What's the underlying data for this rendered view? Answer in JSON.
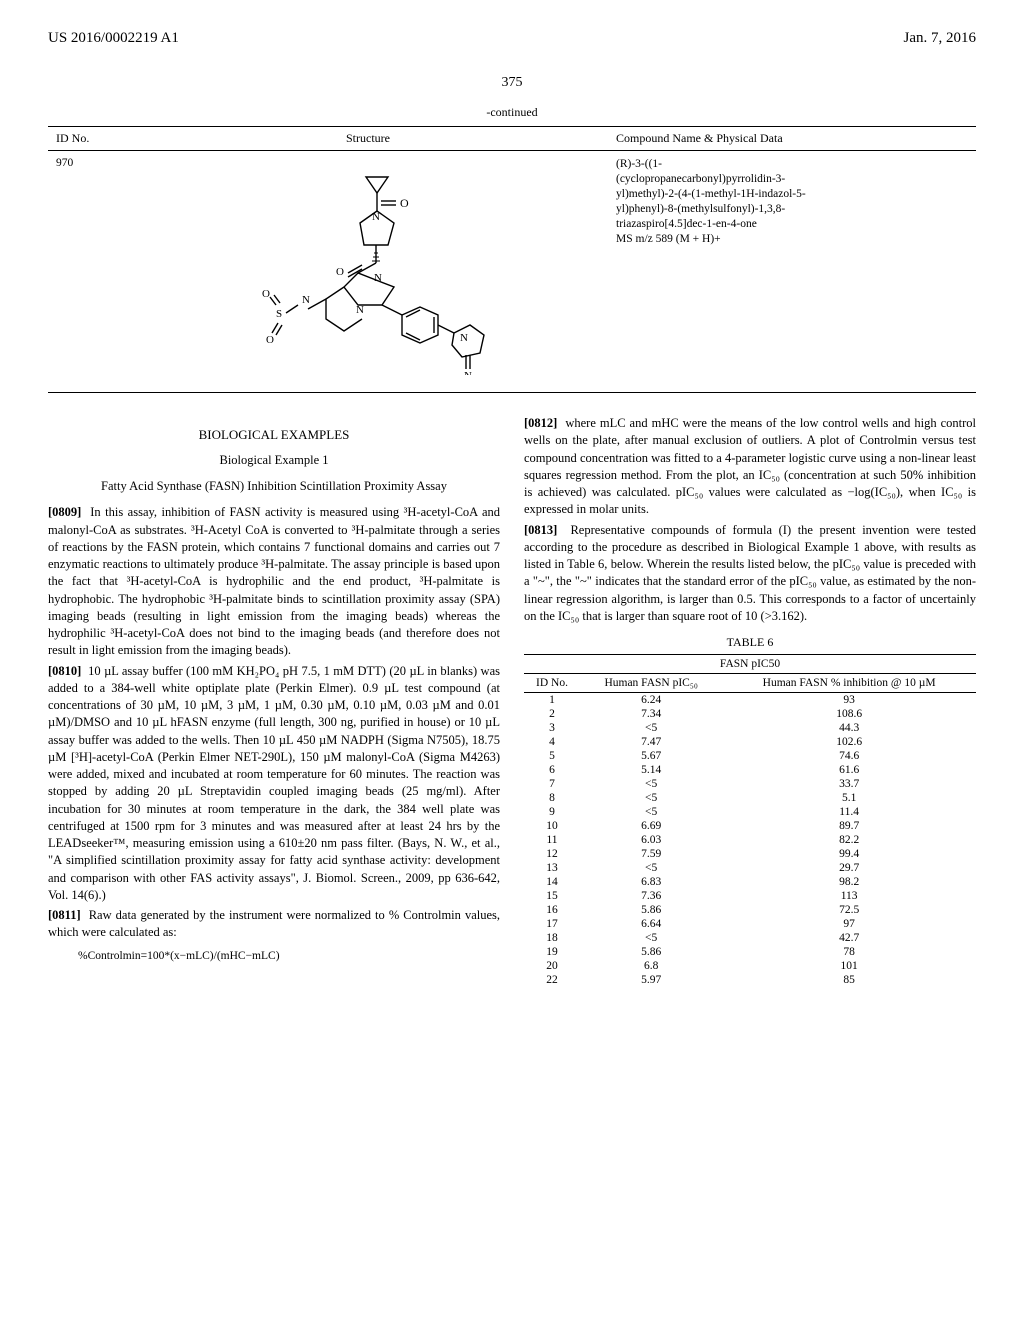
{
  "header": {
    "left": "US 2016/0002219 A1",
    "right": "Jan. 7, 2016"
  },
  "page_number": "375",
  "continued_label": "-continued",
  "top_table": {
    "headers": {
      "id": "ID No.",
      "structure": "Structure",
      "compound": "Compound Name & Physical Data"
    },
    "row": {
      "id": "970",
      "compound_lines": [
        "(R)-3-((1-",
        "(cyclopropanecarbonyl)pyrrolidin-3-",
        "yl)methyl)-2-(4-(1-methyl-1H-indazol-5-",
        "yl)phenyl)-8-(methylsulfonyl)-1,3,8-",
        "triazaspiro[4.5]dec-1-en-4-one",
        "MS m/z 589 (M + H)+"
      ]
    }
  },
  "left_col": {
    "bio_examples_heading": "BIOLOGICAL EXAMPLES",
    "bio_example1_heading": "Biological Example 1",
    "assay_heading": "Fatty Acid Synthase (FASN) Inhibition Scintillation Proximity Assay",
    "p0809": "In this assay, inhibition of FASN activity is measured using ³H-acetyl-CoA and malonyl-CoA as substrates. ³H-Acetyl CoA is converted to ³H-palmitate through a series of reactions by the FASN protein, which contains 7 functional domains and carries out 7 enzymatic reactions to ultimately produce ³H-palmitate. The assay principle is based upon the fact that ³H-acetyl-CoA is hydrophilic and the end product, ³H-palmitate is hydrophobic. The hydrophobic ³H-palmitate binds to scintillation proximity assay (SPA) imaging beads (resulting in light emission from the imaging beads) whereas the hydrophilic ³H-acetyl-CoA does not bind to the imaging beads (and therefore does not result in light emission from the imaging beads).",
    "p0810": "10 µL assay buffer (100 mM KH₂PO₄ pH 7.5, 1 mM DTT) (20 µL in blanks) was added to a 384-well white optiplate plate (Perkin Elmer). 0.9 µL test compound (at concentrations of 30 µM, 10 µM, 3 µM, 1 µM, 0.30 µM, 0.10 µM, 0.03 µM and 0.01 µM)/DMSO and 10 µL hFASN enzyme (full length, 300 ng, purified in house) or 10 µL assay buffer was added to the wells. Then 10 µL 450 µM NADPH (Sigma N7505), 18.75 µM [³H]-acetyl-CoA (Perkin Elmer NET-290L), 150 µM malonyl-CoA (Sigma M4263) were added, mixed and incubated at room temperature for 60 minutes. The reaction was stopped by adding 20 µL Streptavidin coupled imaging beads (25 mg/ml). After incubation for 30 minutes at room temperature in the dark, the 384 well plate was centrifuged at 1500 rpm for 3 minutes and was measured after at least 24 hrs by the LEADseeker™, measuring emission using a 610±20 nm pass filter. (Bays, N. W., et al., \"A simplified scintillation proximity assay for fatty acid synthase activity: development and comparison with other FAS activity assays\", J. Biomol. Screen., 2009, pp 636-642, Vol. 14(6).)",
    "p0811": "Raw data generated by the instrument were normalized to % Controlmin values, which were calculated as:",
    "formula": "%Controlmin=100*(x−mLC)/(mHC−mLC)"
  },
  "right_col": {
    "p0812": "where mLC and mHC were the means of the low control wells and high control wells on the plate, after manual exclusion of outliers. A plot of Controlmin versus test compound concentration was fitted to a 4-parameter logistic curve using a non-linear least squares regression method. From the plot, an IC₅₀ (concentration at such 50% inhibition is achieved) was calculated. pIC₅₀ values were calculated as −log(IC₅₀), when IC₅₀ is expressed in molar units.",
    "p0813": "Representative compounds of formula (I) the present invention were tested according to the procedure as described in Biological Example 1 above, with results as listed in Table 6, below. Wherein the results listed below, the pIC₅₀ value is preceded with a \"~\", the \"~\" indicates that the standard error of the pIC₅₀ value, as estimated by the non-linear regression algorithm, is larger than 0.5. This corresponds to a factor of uncertainly on the IC₅₀ that is larger than square root of 10 (>3.162).",
    "table6_title": "TABLE 6",
    "table6_caption": "FASN pIC50",
    "table6": {
      "headers": {
        "id": "ID No.",
        "pic50": "Human FASN pIC₅₀",
        "inhibition": "Human FASN % inhibition @ 10 µM"
      },
      "rows": [
        {
          "id": "1",
          "pic50": "6.24",
          "inh": "93"
        },
        {
          "id": "2",
          "pic50": "7.34",
          "inh": "108.6"
        },
        {
          "id": "3",
          "pic50": "<5",
          "inh": "44.3"
        },
        {
          "id": "4",
          "pic50": "7.47",
          "inh": "102.6"
        },
        {
          "id": "5",
          "pic50": "5.67",
          "inh": "74.6"
        },
        {
          "id": "6",
          "pic50": "5.14",
          "inh": "61.6"
        },
        {
          "id": "7",
          "pic50": "<5",
          "inh": "33.7"
        },
        {
          "id": "8",
          "pic50": "<5",
          "inh": "5.1"
        },
        {
          "id": "9",
          "pic50": "<5",
          "inh": "11.4"
        },
        {
          "id": "10",
          "pic50": "6.69",
          "inh": "89.7"
        },
        {
          "id": "11",
          "pic50": "6.03",
          "inh": "82.2"
        },
        {
          "id": "12",
          "pic50": "7.59",
          "inh": "99.4"
        },
        {
          "id": "13",
          "pic50": "<5",
          "inh": "29.7"
        },
        {
          "id": "14",
          "pic50": "6.83",
          "inh": "98.2"
        },
        {
          "id": "15",
          "pic50": "7.36",
          "inh": "113"
        },
        {
          "id": "16",
          "pic50": "5.86",
          "inh": "72.5"
        },
        {
          "id": "17",
          "pic50": "6.64",
          "inh": "97"
        },
        {
          "id": "18",
          "pic50": "<5",
          "inh": "42.7"
        },
        {
          "id": "19",
          "pic50": "5.86",
          "inh": "78"
        },
        {
          "id": "20",
          "pic50": "6.8",
          "inh": "101"
        },
        {
          "id": "22",
          "pic50": "5.97",
          "inh": "85"
        }
      ]
    }
  },
  "structure_svg": {
    "stroke": "#000000",
    "stroke_width": 1.4
  },
  "colors": {
    "text": "#000000",
    "background": "#ffffff",
    "rule": "#000000"
  }
}
